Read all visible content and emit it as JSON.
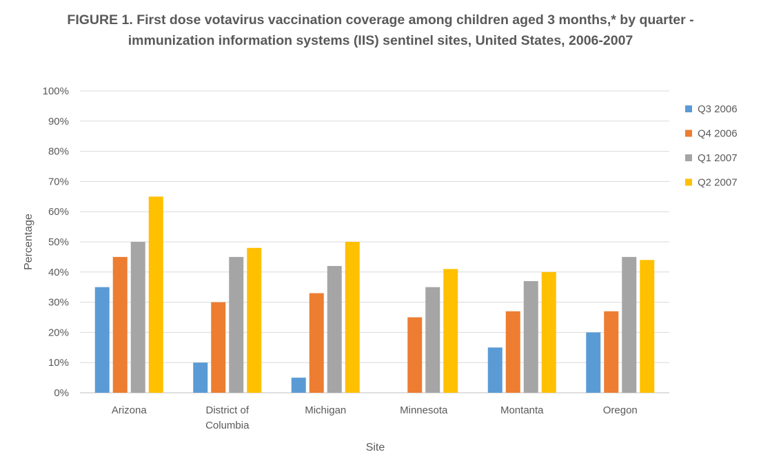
{
  "chart_data": {
    "type": "bar",
    "title": "FIGURE 1. First dose votavirus vaccination coverage among children aged 3 months,* by quarter - immunization information systems (IIS) sentinel sites, United States, 2006-2007",
    "xlabel": "Site",
    "ylabel": "Percentage",
    "categories": [
      "Arizona",
      "District of Columbia",
      "Michigan",
      "Minnesota",
      "Montanta",
      "Oregon"
    ],
    "category_lines": [
      [
        "Arizona"
      ],
      [
        "District of",
        "Columbia"
      ],
      [
        "Michigan"
      ],
      [
        "Minnesota"
      ],
      [
        "Montanta"
      ],
      [
        "Oregon"
      ]
    ],
    "series": [
      {
        "name": "Q3 2006",
        "color": "#5B9BD5",
        "values": [
          35,
          10,
          5,
          0,
          15,
          20
        ]
      },
      {
        "name": "Q4 2006",
        "color": "#ED7D31",
        "values": [
          45,
          30,
          33,
          25,
          27,
          27
        ]
      },
      {
        "name": "Q1 2007",
        "color": "#A5A5A5",
        "values": [
          50,
          45,
          42,
          35,
          37,
          45
        ]
      },
      {
        "name": "Q2 2007",
        "color": "#FFC000",
        "values": [
          65,
          48,
          50,
          41,
          40,
          44
        ]
      }
    ],
    "ylim": [
      0,
      100
    ],
    "yticks": [
      0,
      10,
      20,
      30,
      40,
      50,
      60,
      70,
      80,
      90,
      100
    ],
    "ytick_labels": [
      "0%",
      "10%",
      "20%",
      "30%",
      "40%",
      "50%",
      "60%",
      "70%",
      "80%",
      "90%",
      "100%"
    ],
    "grid": true,
    "legend_position": "right"
  }
}
